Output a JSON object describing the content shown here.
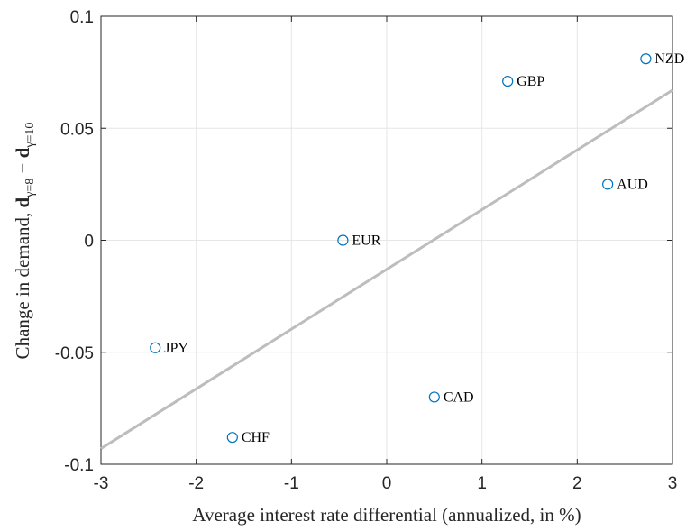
{
  "chart_data": {
    "type": "scatter",
    "xlabel": "Average interest rate differential (annualized, in %)",
    "ylabel": {
      "prefix": "Change in demand, ",
      "term1": "d",
      "sub1": "γ=8",
      "op": " − ",
      "term2": "d",
      "sub2": "γ=10"
    },
    "labels": [
      "JPY",
      "CHF",
      "EUR",
      "CAD",
      "GBP",
      "AUD",
      "NZD"
    ],
    "x": [
      -2.43,
      -1.62,
      -0.46,
      0.5,
      1.27,
      2.32,
      2.72
    ],
    "values": [
      -0.048,
      -0.088,
      0,
      -0.07,
      0.071,
      0.025,
      0.081
    ],
    "color": "#0072bd",
    "fit": {
      "x": [
        -3,
        3
      ],
      "values": [
        -0.093,
        0.067
      ],
      "color": "#bdbdbd"
    },
    "xlim": [
      -3,
      3
    ],
    "xticks": [
      -3,
      -2,
      -1,
      0,
      1,
      2,
      3
    ],
    "ylim": [
      -0.1,
      0.1
    ],
    "yticks": [
      -0.1,
      -0.05,
      0,
      0.05,
      0.1
    ],
    "grid": true
  }
}
